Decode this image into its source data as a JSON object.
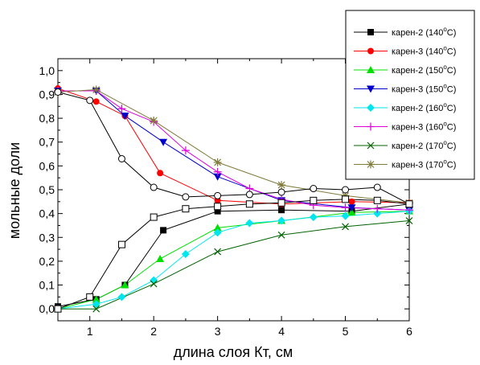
{
  "chart_data": {
    "type": "line",
    "title": "",
    "xlabel": "длина слоя Кт, см",
    "ylabel": "мольные доли",
    "xlim": [
      0.5,
      6
    ],
    "ylim": [
      -0.05,
      1.05
    ],
    "xticks": [
      1,
      2,
      3,
      4,
      5,
      6
    ],
    "yticks": [
      0.0,
      0.1,
      0.2,
      0.3,
      0.4,
      0.5,
      0.6,
      0.7,
      0.8,
      0.9,
      1.0
    ],
    "xtick_labels": [
      "1",
      "2",
      "3",
      "4",
      "5",
      "6"
    ],
    "ytick_labels": [
      "0,0",
      "0,1",
      "0,2",
      "0,3",
      "0,4",
      "0,5",
      "0,6",
      "0,7",
      "0,8",
      "0,9",
      "1,0"
    ],
    "grid": false,
    "legend_position": "top-right",
    "series": [
      {
        "name": "карен-2 (140°C)",
        "label": "карен-2 (140",
        "sup": "o",
        "suffix": "C)",
        "color": "#000000",
        "marker": "square",
        "x": [
          0.5,
          1.1,
          1.55,
          2.15,
          3,
          4,
          5.1,
          6
        ],
        "y": [
          0.01,
          0.04,
          0.1,
          0.33,
          0.41,
          0.415,
          0.41,
          0.44
        ]
      },
      {
        "name": "карен-3 (140°C)",
        "label": "карен-3 (140",
        "sup": "o",
        "suffix": "C)",
        "color": "#ff0000",
        "marker": "circle",
        "x": [
          0.5,
          1.1,
          1.55,
          2.1,
          3,
          4,
          5.1,
          6
        ],
        "y": [
          0.925,
          0.87,
          0.81,
          0.57,
          0.455,
          0.44,
          0.45,
          0.445
        ]
      },
      {
        "name": "карен-2 (150°C)",
        "label": "карен-2 (150",
        "sup": "o",
        "suffix": "C)",
        "color": "#00e000",
        "marker": "triangle-up",
        "x": [
          0.5,
          1.1,
          1.55,
          2.1,
          3,
          4,
          5.1,
          6
        ],
        "y": [
          0.0,
          0.04,
          0.1,
          0.21,
          0.34,
          0.37,
          0.405,
          0.41
        ]
      },
      {
        "name": "карен-3 (150°C)",
        "label": "карен-3 (150",
        "sup": "o",
        "suffix": "C)",
        "color": "#0000cc",
        "marker": "triangle-down",
        "x": [
          0.5,
          1.1,
          1.55,
          2.15,
          3,
          4,
          5.1,
          6
        ],
        "y": [
          0.915,
          0.915,
          0.81,
          0.7,
          0.555,
          0.455,
          0.425,
          0.415
        ]
      },
      {
        "name": "карен-2 (160°C)",
        "label": "карен-2 (160",
        "sup": "o",
        "suffix": "C)",
        "color": "#00e5ee",
        "marker": "diamond",
        "x": [
          0.5,
          1.1,
          1.5,
          2,
          2.5,
          3,
          3.5,
          4,
          4.5,
          5,
          5.5,
          6
        ],
        "y": [
          0.0,
          0.02,
          0.05,
          0.12,
          0.23,
          0.32,
          0.36,
          0.37,
          0.385,
          0.39,
          0.4,
          0.41
        ]
      },
      {
        "name": "карен-3 (160°C)",
        "label": "карен-3 (160",
        "sup": "o",
        "suffix": "C)",
        "color": "#dd00dd",
        "marker": "plus",
        "x": [
          0.5,
          1.1,
          1.5,
          2,
          2.5,
          3,
          3.5,
          4,
          4.5,
          5,
          5.5,
          6
        ],
        "y": [
          0.915,
          0.915,
          0.84,
          0.785,
          0.665,
          0.575,
          0.505,
          0.46,
          0.435,
          0.425,
          0.42,
          0.415
        ]
      },
      {
        "name": "карен-2 (170°C)",
        "label": "карен-2 (170",
        "sup": "o",
        "suffix": "C)",
        "color": "#006400",
        "marker": "x",
        "x": [
          0.5,
          1.1,
          2,
          3,
          4,
          5,
          6
        ],
        "y": [
          0.0,
          0.0,
          0.105,
          0.24,
          0.31,
          0.345,
          0.37
        ]
      },
      {
        "name": "карен-3 (170°C)",
        "label": "карен-3 (170",
        "sup": "o",
        "suffix": "C)",
        "color": "#807b3a",
        "marker": "star",
        "x": [
          0.5,
          1.1,
          2,
          3,
          4,
          5,
          6
        ],
        "y": [
          0.91,
          0.92,
          0.79,
          0.615,
          0.52,
          0.475,
          0.445
        ]
      },
      {
        "name": "",
        "label": "",
        "sup": "",
        "suffix": "",
        "color": "#000000",
        "marker": "open-circle",
        "in_legend": false,
        "x": [
          0.5,
          1,
          1.5,
          2,
          2.5,
          3,
          3.5,
          4,
          4.5,
          5,
          5.5,
          6
        ],
        "y": [
          0.91,
          0.875,
          0.63,
          0.51,
          0.47,
          0.475,
          0.48,
          0.49,
          0.505,
          0.5,
          0.51,
          0.44
        ]
      },
      {
        "name": "",
        "label": "",
        "sup": "",
        "suffix": "",
        "color": "#000000",
        "marker": "open-square",
        "in_legend": false,
        "x": [
          0.5,
          1,
          1.5,
          2,
          2.5,
          3,
          3.5,
          4,
          4.5,
          5,
          5.5,
          6
        ],
        "y": [
          0.0,
          0.05,
          0.27,
          0.385,
          0.42,
          0.43,
          0.44,
          0.445,
          0.455,
          0.46,
          0.455,
          0.44
        ]
      }
    ]
  }
}
